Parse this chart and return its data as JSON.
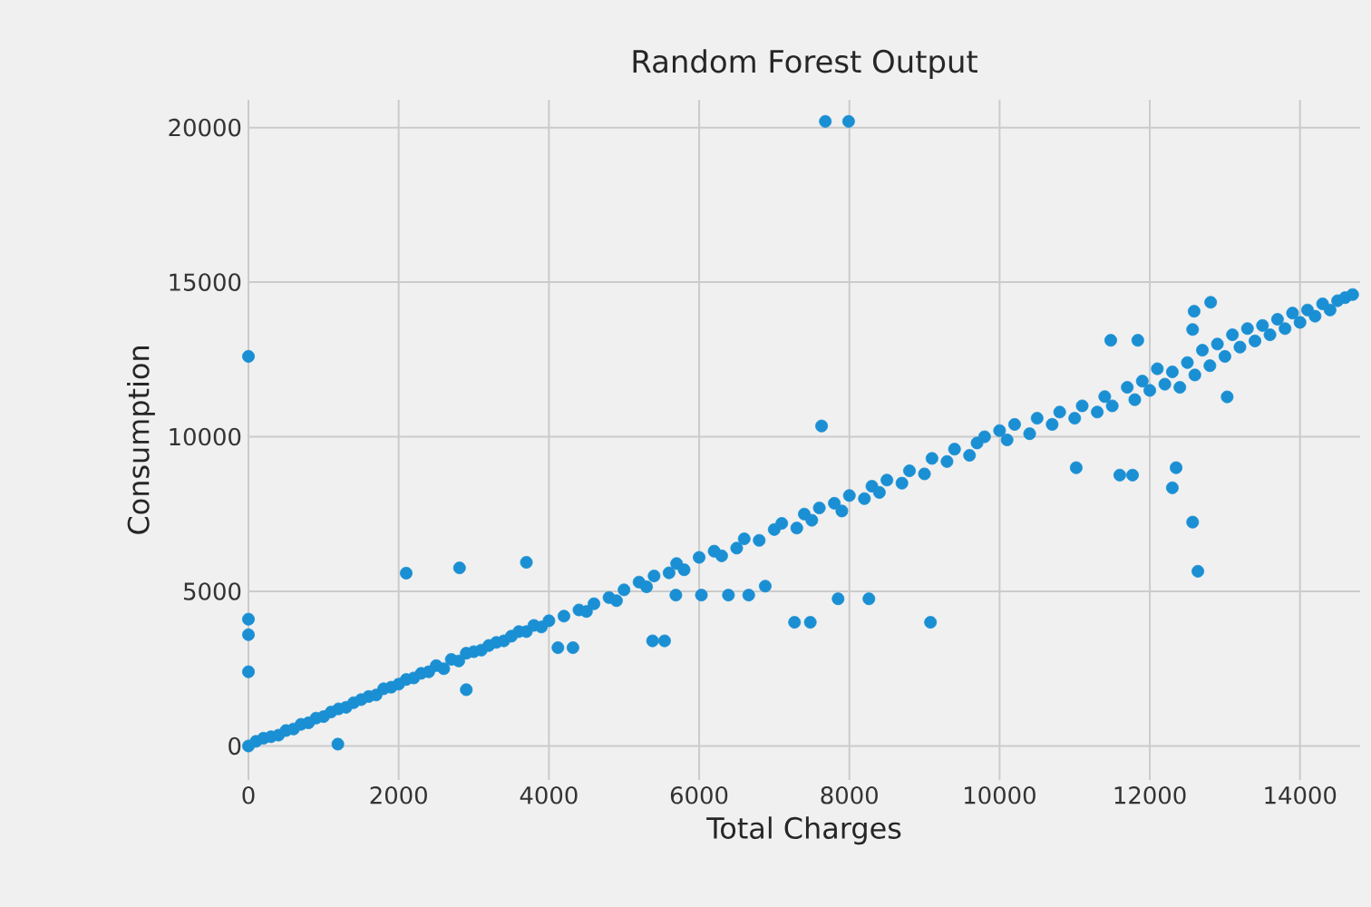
{
  "chart_data": {
    "type": "scatter",
    "title": "Random Forest Output",
    "xlabel": "Total Charges",
    "ylabel": "Consumption",
    "x": [
      0,
      100,
      200,
      300,
      400,
      500,
      600,
      700,
      800,
      900,
      1000,
      1100,
      1200,
      1300,
      1400,
      1500,
      1600,
      1700,
      1800,
      1900,
      2000,
      2100,
      2200,
      2300,
      2400,
      2500,
      2600,
      2700,
      2800,
      2900,
      3000,
      3100,
      3200,
      3300,
      3400,
      3500,
      3600,
      3700,
      3800,
      3900,
      4000,
      4200,
      4400,
      4500,
      4600,
      4800,
      4900,
      5000,
      5200,
      5300,
      5400,
      5600,
      5700,
      5800,
      6000,
      6200,
      6300,
      6500,
      6600,
      6800,
      7000,
      7100,
      7300,
      7400,
      7500,
      7600,
      7800,
      7900,
      8000,
      8200,
      8300,
      8400,
      8500,
      8700,
      8800,
      9000,
      9100,
      9300,
      9400,
      9600,
      9700,
      9800,
      10000,
      10100,
      10200,
      10400,
      10500,
      10700,
      10800,
      11000,
      11100,
      11300,
      11400,
      11500,
      11700,
      11800,
      11900,
      12000,
      12100,
      12200,
      12300,
      12400,
      12500,
      12600,
      12700,
      12800,
      12900,
      13000,
      13100,
      13200,
      13300,
      13400,
      13500,
      13600,
      13700,
      13800,
      13900,
      14000,
      14100,
      14200,
      14300,
      14400,
      14500,
      14600,
      14700,
      0,
      0,
      0,
      0,
      1190,
      2100,
      2810,
      3700,
      2900,
      4120,
      4320,
      5380,
      5540,
      5690,
      6030,
      6390,
      6660,
      6880,
      7630,
      7270,
      7480,
      7850,
      8260,
      9080,
      11020,
      11600,
      11770,
      12350,
      12300,
      12570,
      12640,
      13030,
      11480,
      11840,
      12810,
      12590,
      12570,
      7680,
      7990
    ],
    "values": [
      0,
      150,
      250,
      300,
      350,
      500,
      550,
      700,
      750,
      900,
      950,
      1100,
      1200,
      1250,
      1400,
      1500,
      1600,
      1650,
      1850,
      1900,
      2000,
      2150,
      2200,
      2350,
      2400,
      2600,
      2500,
      2800,
      2750,
      3000,
      3050,
      3100,
      3250,
      3350,
      3400,
      3550,
      3700,
      3700,
      3900,
      3850,
      4050,
      4200,
      4400,
      4350,
      4600,
      4800,
      4700,
      5050,
      5300,
      5150,
      5500,
      5600,
      5900,
      5700,
      6100,
      6300,
      6150,
      6400,
      6700,
      6650,
      7000,
      7200,
      7050,
      7500,
      7300,
      7700,
      7850,
      7600,
      8100,
      8000,
      8400,
      8200,
      8600,
      8500,
      8900,
      8800,
      9300,
      9200,
      9600,
      9400,
      9800,
      10000,
      10200,
      9900,
      10400,
      10100,
      10600,
      10400,
      10800,
      10600,
      11000,
      10800,
      11300,
      11000,
      11600,
      11200,
      11800,
      11500,
      12200,
      11700,
      12100,
      11600,
      12400,
      12000,
      12800,
      12300,
      13000,
      12600,
      13300,
      12900,
      13500,
      13100,
      13600,
      13300,
      13800,
      13500,
      14000,
      13700,
      14100,
      13900,
      14300,
      14100,
      14400,
      14500,
      14600,
      12600,
      4100,
      3600,
      2400,
      60,
      5590,
      5760,
      5940,
      1820,
      3180,
      3180,
      3400,
      3400,
      4880,
      4880,
      4880,
      4880,
      5170,
      10350,
      4000,
      4000,
      4760,
      4760,
      4000,
      9000,
      8760,
      8760,
      9000,
      8350,
      7240,
      5650,
      11290,
      13120,
      13120,
      14350,
      14060,
      13470,
      20200,
      20200
    ],
    "color": "#1a8fd3",
    "grid": true,
    "xlim": [
      0,
      14800
    ],
    "ylim": [
      -1100,
      20900
    ],
    "xticks": [
      0,
      2000,
      4000,
      6000,
      8000,
      10000,
      12000,
      14000
    ],
    "yticks": [
      0,
      5000,
      10000,
      15000,
      20000
    ]
  }
}
